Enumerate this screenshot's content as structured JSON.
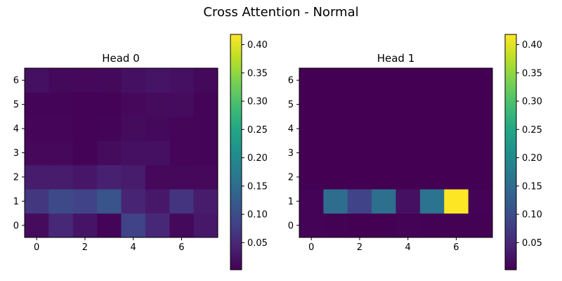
{
  "chart_data": {
    "title": "Cross Attention - Normal",
    "panels": [
      {
        "type": "heatmap",
        "title": "Head 0",
        "cols": 8,
        "rows": 7,
        "xticks": [
          0,
          2,
          4,
          6
        ],
        "yticks": [
          0,
          1,
          2,
          3,
          4,
          5,
          6
        ],
        "values": [
          [
            0.015,
            0.05,
            0.025,
            0.006,
            0.085,
            0.05,
            0.012,
            0.03
          ],
          [
            0.07,
            0.095,
            0.085,
            0.11,
            0.045,
            0.03,
            0.065,
            0.035
          ],
          [
            0.035,
            0.035,
            0.028,
            0.04,
            0.035,
            0.01,
            0.01,
            0.01
          ],
          [
            0.01,
            0.01,
            0.005,
            0.015,
            0.02,
            0.02,
            0.008,
            0.006
          ],
          [
            0.008,
            0.008,
            0.004,
            0.006,
            0.015,
            0.012,
            0.008,
            0.006
          ],
          [
            0.006,
            0.006,
            0.004,
            0.004,
            0.01,
            0.015,
            0.015,
            0.006
          ],
          [
            0.02,
            0.012,
            0.01,
            0.012,
            0.02,
            0.025,
            0.02,
            0.012
          ]
        ],
        "colorbar": {
          "ticks": [
            "0.05",
            "0.10",
            "0.15",
            "0.20",
            "0.25",
            "0.30",
            "0.35",
            "0.40"
          ],
          "vmin": 0.002,
          "vmax": 0.418
        }
      },
      {
        "type": "heatmap",
        "title": "Head 1",
        "cols": 8,
        "rows": 7,
        "xticks": [
          0,
          2,
          4,
          6
        ],
        "yticks": [
          0,
          1,
          2,
          3,
          4,
          5,
          6
        ],
        "values": [
          [
            0.004,
            0.003,
            0.002,
            0.002,
            0.004,
            0.003,
            0.003,
            0.003
          ],
          [
            0.004,
            0.15,
            0.085,
            0.155,
            0.02,
            0.16,
            0.418,
            0.004
          ],
          [
            0.002,
            0.002,
            0.002,
            0.002,
            0.002,
            0.002,
            0.002,
            0.002
          ],
          [
            0.002,
            0.002,
            0.002,
            0.002,
            0.002,
            0.002,
            0.002,
            0.002
          ],
          [
            0.002,
            0.002,
            0.002,
            0.002,
            0.002,
            0.002,
            0.002,
            0.002
          ],
          [
            0.002,
            0.002,
            0.002,
            0.002,
            0.002,
            0.002,
            0.002,
            0.002
          ],
          [
            0.002,
            0.002,
            0.002,
            0.002,
            0.002,
            0.002,
            0.002,
            0.002
          ]
        ],
        "colorbar": {
          "ticks": [
            "0.05",
            "0.10",
            "0.15",
            "0.20",
            "0.25",
            "0.30",
            "0.35",
            "0.40"
          ],
          "vmin": 0.002,
          "vmax": 0.418
        }
      }
    ]
  }
}
